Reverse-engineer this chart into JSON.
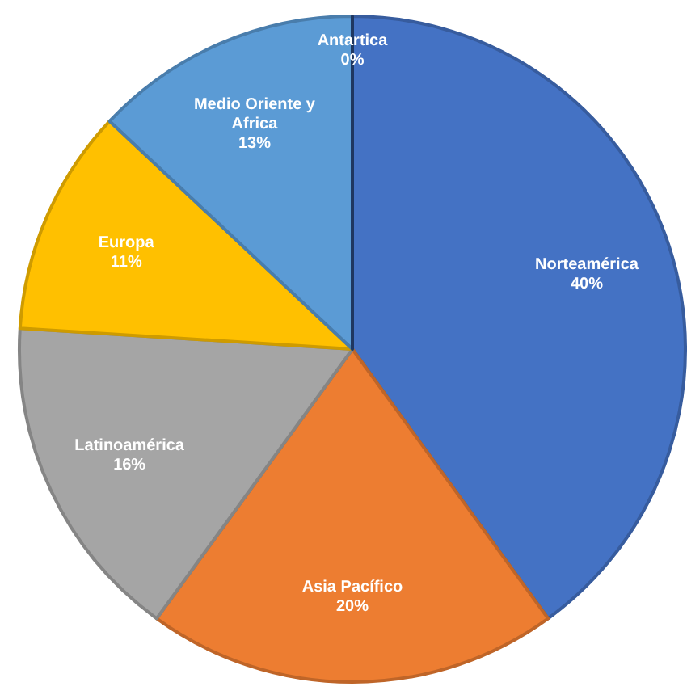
{
  "chart_data": {
    "type": "pie",
    "categories": [
      "Norteamérica",
      "Asia Pacífico",
      "Latinoamérica",
      "Europa",
      "Medio Oriente y Africa",
      "Antartica"
    ],
    "values": [
      40,
      20,
      16,
      11,
      13,
      0
    ],
    "value_labels": [
      "40%",
      "20%",
      "16%",
      "11%",
      "13%",
      "0%"
    ],
    "colors": [
      "#4472c4",
      "#ed7d31",
      "#a5a5a5",
      "#ffc000",
      "#5b9bd5",
      "#264478"
    ]
  }
}
